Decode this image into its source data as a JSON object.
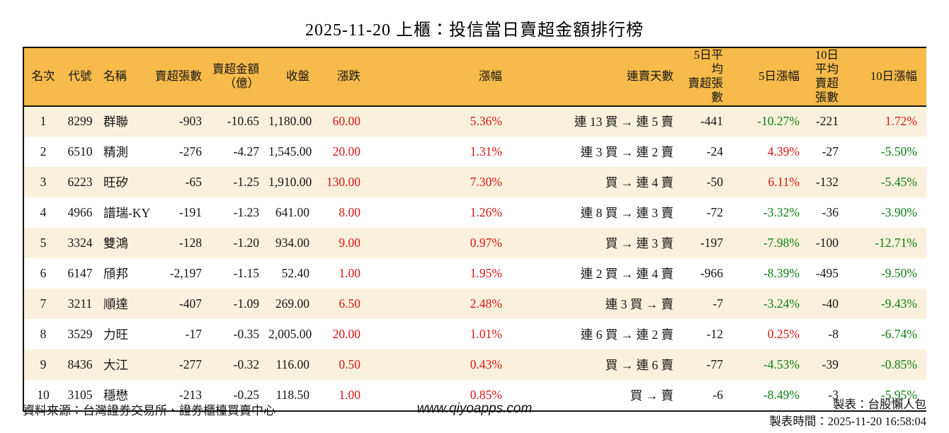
{
  "title": "2025-11-20 上櫃：投信當日賣超金額排行榜",
  "table": {
    "headers": [
      "名次",
      "代號",
      "名稱",
      "賣超張數",
      "賣超金額\n（億）",
      "收盤",
      "漲跌",
      "漲幅",
      "連賣天數",
      "5日平均\n賣超張數",
      "5日漲幅",
      "10日平均\n賣超張數",
      "10日漲幅"
    ],
    "rows": [
      {
        "rank": "1",
        "code": "8299",
        "name": "群聯",
        "sell_lots": "-903",
        "sell_amount": "-10.65",
        "close": "1,180.00",
        "change": "60.00",
        "change_pct": "5.36%",
        "streak": "連 13 買 → 連 5 賣",
        "avg5_lots": "-441",
        "pct5": "-10.27%",
        "avg10_lots": "-221",
        "pct10": "1.72%"
      },
      {
        "rank": "2",
        "code": "6510",
        "name": "精測",
        "sell_lots": "-276",
        "sell_amount": "-4.27",
        "close": "1,545.00",
        "change": "20.00",
        "change_pct": "1.31%",
        "streak": "連 3 買 → 連 2 賣",
        "avg5_lots": "-24",
        "pct5": "4.39%",
        "avg10_lots": "-27",
        "pct10": "-5.50%"
      },
      {
        "rank": "3",
        "code": "6223",
        "name": "旺矽",
        "sell_lots": "-65",
        "sell_amount": "-1.25",
        "close": "1,910.00",
        "change": "130.00",
        "change_pct": "7.30%",
        "streak": "買 → 連 4 賣",
        "avg5_lots": "-50",
        "pct5": "6.11%",
        "avg10_lots": "-132",
        "pct10": "-5.45%"
      },
      {
        "rank": "4",
        "code": "4966",
        "name": "譜瑞-KY",
        "sell_lots": "-191",
        "sell_amount": "-1.23",
        "close": "641.00",
        "change": "8.00",
        "change_pct": "1.26%",
        "streak": "連 8 買 → 連 3 賣",
        "avg5_lots": "-72",
        "pct5": "-3.32%",
        "avg10_lots": "-36",
        "pct10": "-3.90%"
      },
      {
        "rank": "5",
        "code": "3324",
        "name": "雙鴻",
        "sell_lots": "-128",
        "sell_amount": "-1.20",
        "close": "934.00",
        "change": "9.00",
        "change_pct": "0.97%",
        "streak": "買 → 連 3 賣",
        "avg5_lots": "-197",
        "pct5": "-7.98%",
        "avg10_lots": "-100",
        "pct10": "-12.71%"
      },
      {
        "rank": "6",
        "code": "6147",
        "name": "頎邦",
        "sell_lots": "-2,197",
        "sell_amount": "-1.15",
        "close": "52.40",
        "change": "1.00",
        "change_pct": "1.95%",
        "streak": "連 2 買 → 連 4 賣",
        "avg5_lots": "-966",
        "pct5": "-8.39%",
        "avg10_lots": "-495",
        "pct10": "-9.50%"
      },
      {
        "rank": "7",
        "code": "3211",
        "name": "順達",
        "sell_lots": "-407",
        "sell_amount": "-1.09",
        "close": "269.00",
        "change": "6.50",
        "change_pct": "2.48%",
        "streak": "連 3 買 → 賣",
        "avg5_lots": "-7",
        "pct5": "-3.24%",
        "avg10_lots": "-40",
        "pct10": "-9.43%"
      },
      {
        "rank": "8",
        "code": "3529",
        "name": "力旺",
        "sell_lots": "-17",
        "sell_amount": "-0.35",
        "close": "2,005.00",
        "change": "20.00",
        "change_pct": "1.01%",
        "streak": "連 6 買 → 連 2 賣",
        "avg5_lots": "-12",
        "pct5": "0.25%",
        "avg10_lots": "-8",
        "pct10": "-6.74%"
      },
      {
        "rank": "9",
        "code": "8436",
        "name": "大江",
        "sell_lots": "-277",
        "sell_amount": "-0.32",
        "close": "116.00",
        "change": "0.50",
        "change_pct": "0.43%",
        "streak": "買 → 連 6 賣",
        "avg5_lots": "-77",
        "pct5": "-4.53%",
        "avg10_lots": "-39",
        "pct10": "-0.85%"
      },
      {
        "rank": "10",
        "code": "3105",
        "name": "穩懋",
        "sell_lots": "-213",
        "sell_amount": "-0.25",
        "close": "118.50",
        "change": "1.00",
        "change_pct": "0.85%",
        "streak": "買 → 賣",
        "avg5_lots": "-6",
        "pct5": "-8.49%",
        "avg10_lots": "-3",
        "pct10": "-5.95%"
      }
    ]
  },
  "footer": {
    "source": "資料來源：台灣證券交易所、證券櫃檯買賣中心",
    "website": "www.qiyoapps.com",
    "maker": "製表：台股懶人包",
    "made_at": "製表時間：2025-11-20 16:58:04"
  },
  "colors": {
    "header_bg": "#f6bb4b",
    "stripe_bg": "#faf1dc",
    "up_red": "#d71414",
    "down_green": "#0e7d12"
  }
}
